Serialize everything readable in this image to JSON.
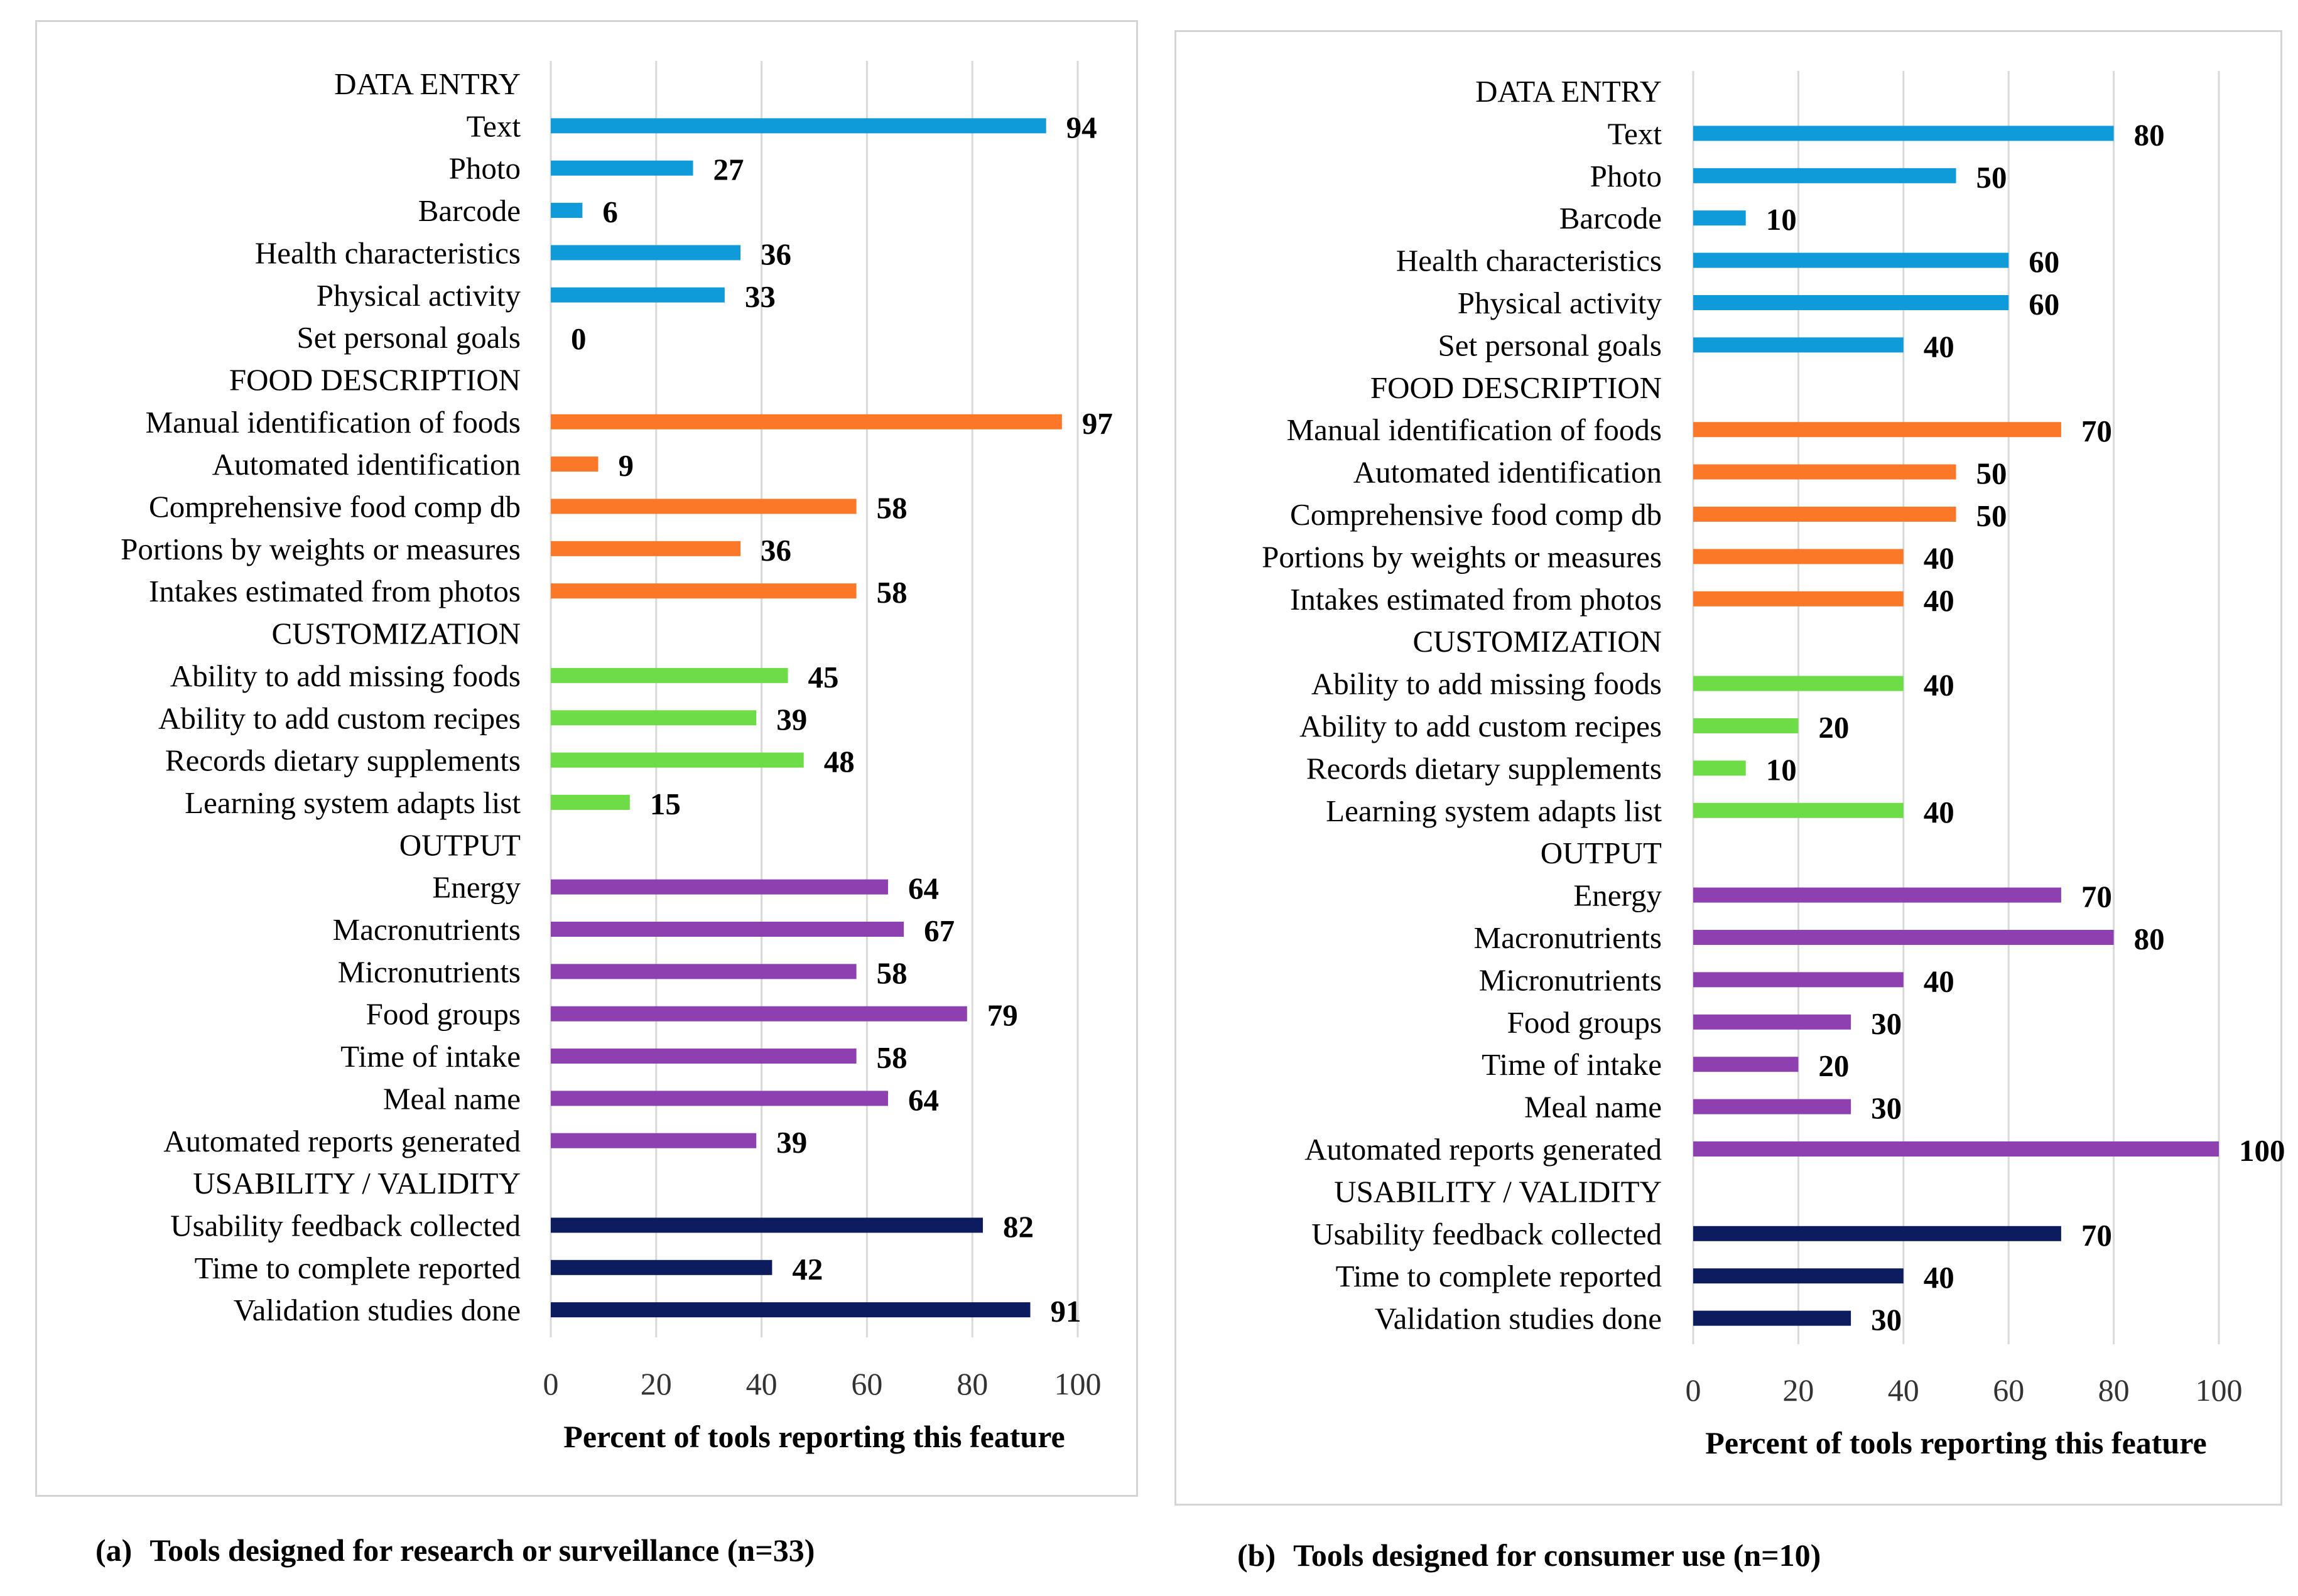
{
  "chart_data": [
    {
      "type": "bar",
      "orientation": "horizontal",
      "panel_label": "(a)",
      "caption": "Tools designed for research or surveillance (n=33)",
      "xlabel": "Percent of tools reporting this feature",
      "xlim": [
        0,
        100
      ],
      "xticks": [
        "0",
        "20",
        "40",
        "60",
        "80",
        "100"
      ],
      "grid": true,
      "groups": [
        {
          "name": "DATA ENTRY",
          "color": "#0F9AD9",
          "items": [
            {
              "label": "Text",
              "value": 94
            },
            {
              "label": "Photo",
              "value": 27
            },
            {
              "label": "Barcode",
              "value": 6
            },
            {
              "label": "Health characteristics",
              "value": 36
            },
            {
              "label": "Physical activity",
              "value": 33
            },
            {
              "label": "Set personal goals",
              "value": 0
            }
          ]
        },
        {
          "name": "FOOD DESCRIPTION",
          "color": "#FB7829",
          "items": [
            {
              "label": "Manual identification of foods",
              "value": 97
            },
            {
              "label": "Automated identification",
              "value": 9
            },
            {
              "label": "Comprehensive food comp db",
              "value": 58
            },
            {
              "label": "Portions by weights or measures",
              "value": 36
            },
            {
              "label": "Intakes estimated from photos",
              "value": 58
            }
          ]
        },
        {
          "name": "CUSTOMIZATION",
          "color": "#6EDC46",
          "items": [
            {
              "label": "Ability to add missing foods",
              "value": 45
            },
            {
              "label": "Ability to add custom recipes",
              "value": 39
            },
            {
              "label": "Records dietary supplements",
              "value": 48
            },
            {
              "label": "Learning system adapts list",
              "value": 15
            }
          ]
        },
        {
          "name": "OUTPUT",
          "color": "#8E3FB0",
          "items": [
            {
              "label": "Energy",
              "value": 64
            },
            {
              "label": "Macronutrients",
              "value": 67
            },
            {
              "label": "Micronutrients",
              "value": 58
            },
            {
              "label": "Food groups",
              "value": 79
            },
            {
              "label": "Time of intake",
              "value": 58
            },
            {
              "label": "Meal name",
              "value": 64
            },
            {
              "label": "Automated reports generated",
              "value": 39
            }
          ]
        },
        {
          "name": "USABILITY / VALIDITY",
          "color": "#0C1C5E",
          "items": [
            {
              "label": "Usability feedback collected",
              "value": 82
            },
            {
              "label": "Time to complete reported",
              "value": 42
            },
            {
              "label": "Validation studies done",
              "value": 91
            }
          ]
        }
      ]
    },
    {
      "type": "bar",
      "orientation": "horizontal",
      "panel_label": "(b)",
      "caption": "Tools designed for consumer use (n=10)",
      "xlabel": "Percent of tools reporting this feature",
      "xlim": [
        0,
        100
      ],
      "xticks": [
        "0",
        "20",
        "40",
        "60",
        "80",
        "100"
      ],
      "grid": true,
      "groups": [
        {
          "name": "DATA ENTRY",
          "color": "#0F9AD9",
          "items": [
            {
              "label": "Text",
              "value": 80
            },
            {
              "label": "Photo",
              "value": 50
            },
            {
              "label": "Barcode",
              "value": 10
            },
            {
              "label": "Health characteristics",
              "value": 60
            },
            {
              "label": "Physical activity",
              "value": 60
            },
            {
              "label": "Set personal goals",
              "value": 40
            }
          ]
        },
        {
          "name": "FOOD DESCRIPTION",
          "color": "#FB7829",
          "items": [
            {
              "label": "Manual identification of foods",
              "value": 70
            },
            {
              "label": "Automated identification",
              "value": 50
            },
            {
              "label": "Comprehensive food comp db",
              "value": 50
            },
            {
              "label": "Portions by weights or measures",
              "value": 40
            },
            {
              "label": "Intakes estimated from photos",
              "value": 40
            }
          ]
        },
        {
          "name": "CUSTOMIZATION",
          "color": "#6EDC46",
          "items": [
            {
              "label": "Ability to add missing foods",
              "value": 40
            },
            {
              "label": "Ability to add custom recipes",
              "value": 20
            },
            {
              "label": "Records dietary supplements",
              "value": 10
            },
            {
              "label": "Learning system adapts list",
              "value": 40
            }
          ]
        },
        {
          "name": "OUTPUT",
          "color": "#8E3FB0",
          "items": [
            {
              "label": "Energy",
              "value": 70
            },
            {
              "label": "Macronutrients",
              "value": 80
            },
            {
              "label": "Micronutrients",
              "value": 40
            },
            {
              "label": "Food groups",
              "value": 30
            },
            {
              "label": "Time of intake",
              "value": 20
            },
            {
              "label": "Meal name",
              "value": 30
            },
            {
              "label": "Automated reports generated",
              "value": 100
            }
          ]
        },
        {
          "name": "USABILITY / VALIDITY",
          "color": "#0C1C5E",
          "items": [
            {
              "label": "Usability feedback collected",
              "value": 70
            },
            {
              "label": "Time to complete reported",
              "value": 40
            },
            {
              "label": "Validation studies done",
              "value": 30
            }
          ]
        }
      ]
    }
  ]
}
